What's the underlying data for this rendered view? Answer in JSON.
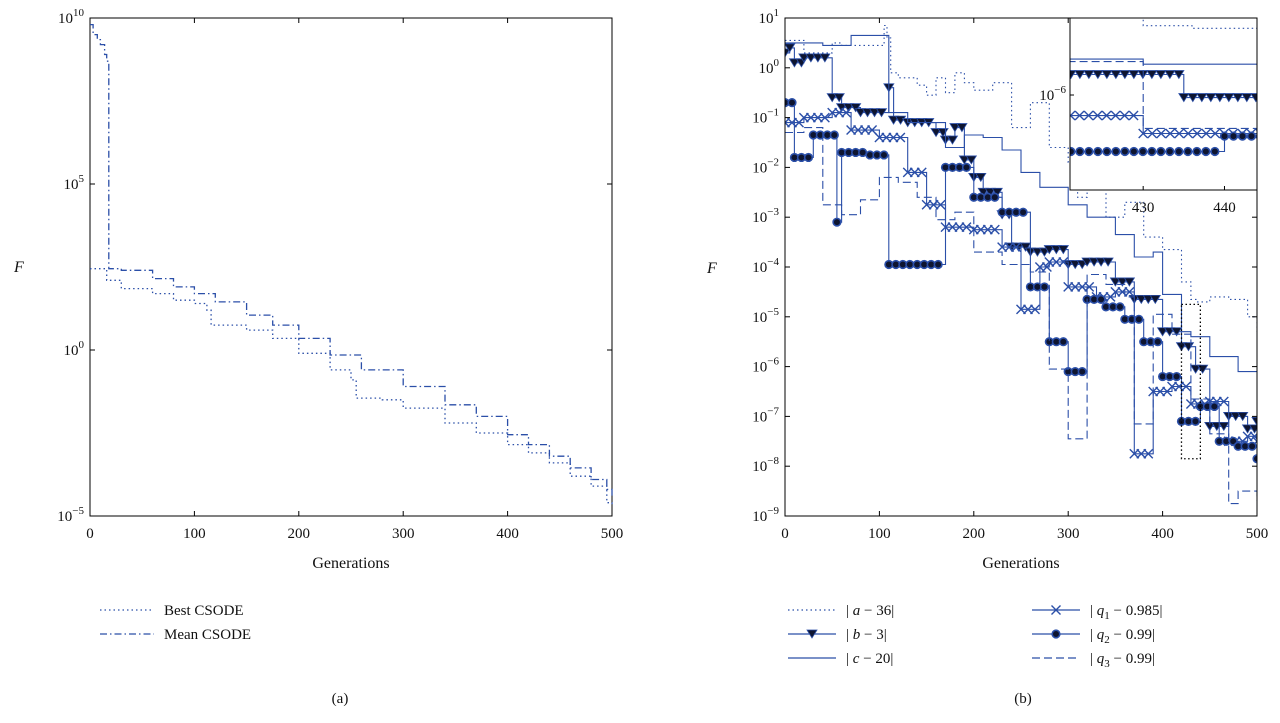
{
  "chart_data": [
    {
      "id": "a",
      "panel_label": "(a)",
      "type": "line",
      "xlabel": "Generations",
      "ylabel": "F",
      "xlim": [
        0,
        500
      ],
      "ylim_exp": [
        -5,
        10
      ],
      "log_y": true,
      "grid": false,
      "legend_position": "below",
      "x_ticks": [
        "0",
        "100",
        "200",
        "300",
        "400",
        "500"
      ],
      "y_tick_exponents": [
        "10",
        "5",
        "0",
        "−5"
      ],
      "colors": {
        "line": "#2b4fa8"
      },
      "series": [
        {
          "name": "Best CSODE",
          "style": "dotted",
          "x": [
            0,
            16,
            30,
            60,
            80,
            100,
            112,
            116,
            150,
            175,
            200,
            230,
            250,
            255,
            280,
            300,
            340,
            370,
            400,
            420,
            440,
            460,
            480,
            495,
            500
          ],
          "log10_y": [
            2.45,
            2.1,
            1.85,
            1.7,
            1.5,
            1.4,
            1.2,
            0.75,
            0.6,
            0.35,
            -0.1,
            -0.6,
            -0.9,
            -1.45,
            -1.5,
            -1.75,
            -2.2,
            -2.5,
            -2.85,
            -3.1,
            -3.4,
            -3.8,
            -4.1,
            -4.6,
            -4.7
          ]
        },
        {
          "name": "Mean CSODE",
          "style": "dashdot",
          "x": [
            0,
            3,
            7,
            10,
            14,
            16,
            18,
            30,
            60,
            80,
            100,
            120,
            150,
            175,
            200,
            230,
            260,
            300,
            340,
            370,
            400,
            420,
            440,
            460,
            480,
            495,
            500
          ],
          "log10_y": [
            9.8,
            9.5,
            9.35,
            9.2,
            8.9,
            8.7,
            2.45,
            2.4,
            2.15,
            1.9,
            1.7,
            1.45,
            1.05,
            0.75,
            0.35,
            -0.15,
            -0.6,
            -1.1,
            -1.65,
            -2.0,
            -2.55,
            -2.85,
            -3.2,
            -3.55,
            -3.9,
            -4.2,
            -4.4
          ]
        }
      ]
    },
    {
      "id": "b",
      "panel_label": "(b)",
      "type": "line",
      "xlabel": "Generations",
      "ylabel": "F",
      "xlim": [
        0,
        500
      ],
      "ylim_exp": [
        -9,
        1
      ],
      "log_y": true,
      "grid": false,
      "legend_position": "below",
      "x_ticks": [
        "0",
        "100",
        "200",
        "300",
        "400",
        "500"
      ],
      "y_tick_exponents": [
        "1",
        "0",
        "−1",
        "−2",
        "−3",
        "−4",
        "−5",
        "−6",
        "−7",
        "−8",
        "−9"
      ],
      "colors": {
        "line": "#2b4fa8",
        "marker_dark": "#0e1530",
        "box": "#000000"
      },
      "zoom_box": {
        "x": [
          420,
          440
        ],
        "log10_y": [
          -7.85,
          -4.75
        ]
      },
      "inset": {
        "xlim": [
          421,
          444
        ],
        "log10_ylim": [
          -7.85,
          -4.5
        ],
        "x_ticks": [
          "430",
          "440"
        ],
        "y_tick_exponents": [
          "−6"
        ]
      },
      "series": [
        {
          "name": "|a − 36|",
          "label_parts": [
            "|",
            "a",
            " − 36|"
          ],
          "style": "dotted",
          "marker": "none",
          "x": [
            0,
            20,
            50,
            60,
            105,
            108,
            112,
            120,
            140,
            150,
            160,
            170,
            180,
            190,
            200,
            220,
            240,
            260,
            280,
            300,
            310,
            320,
            340,
            360,
            380,
            400,
            420,
            430,
            436,
            450,
            470,
            490,
            500
          ],
          "log10_y": [
            0.55,
            0.3,
            0.5,
            0.45,
            0.85,
            0.6,
            -0.1,
            -0.2,
            -0.35,
            -0.55,
            -0.2,
            -0.5,
            -0.1,
            -0.3,
            -0.45,
            -0.3,
            -1.2,
            -0.7,
            -1.6,
            -1.9,
            -2.6,
            -2.4,
            -3.0,
            -2.7,
            -3.4,
            -3.65,
            -4.3,
            -4.65,
            -4.7,
            -4.6,
            -4.65,
            -5.0,
            -5.3
          ]
        },
        {
          "name": "|b − 3|",
          "label_parts": [
            "|",
            "b",
            " − 3|"
          ],
          "style": "solid",
          "marker": "triangle",
          "x": [
            0,
            5,
            10,
            20,
            50,
            60,
            80,
            110,
            115,
            130,
            160,
            170,
            180,
            190,
            200,
            210,
            230,
            240,
            260,
            280,
            300,
            320,
            350,
            370,
            400,
            420,
            435,
            450,
            470,
            490,
            500
          ],
          "log10_y": [
            0.3,
            0.4,
            0.1,
            0.2,
            -0.6,
            -0.8,
            -0.9,
            -0.4,
            -1.05,
            -1.1,
            -1.3,
            -1.45,
            -1.2,
            -1.85,
            -2.2,
            -2.5,
            -2.95,
            -3.6,
            -3.7,
            -3.65,
            -3.95,
            -3.9,
            -4.3,
            -4.65,
            -5.3,
            -5.6,
            -6.05,
            -7.2,
            -7.0,
            -7.25,
            -7.1
          ]
        },
        {
          "name": "|c − 20|",
          "label_parts": [
            "|",
            "c",
            " − 20|"
          ],
          "style": "solid",
          "marker": "none",
          "x": [
            0,
            40,
            70,
            110,
            130,
            150,
            170,
            190,
            210,
            230,
            250,
            270,
            300,
            320,
            350,
            370,
            390,
            400,
            420,
            430,
            450,
            470,
            480,
            500
          ],
          "log10_y": [
            0.5,
            0.45,
            0.65,
            -0.9,
            -1.1,
            -1.1,
            -1.6,
            -1.35,
            -1.4,
            -1.65,
            -2.1,
            -2.4,
            -2.75,
            -3.0,
            -3.35,
            -3.8,
            -3.7,
            -4.55,
            -5.3,
            -5.4,
            -5.8,
            -5.8,
            -6.1,
            -6.1
          ]
        },
        {
          "name": "|q₁ − 0.985|",
          "label_parts": [
            "|",
            "q",
            "1",
            " − 0.985|"
          ],
          "style": "solid",
          "marker": "x",
          "x": [
            0,
            20,
            50,
            70,
            100,
            130,
            150,
            170,
            200,
            230,
            250,
            270,
            280,
            300,
            330,
            350,
            370,
            390,
            410,
            430,
            450,
            470,
            490,
            500
          ],
          "log10_y": [
            -1.1,
            -1.0,
            -0.9,
            -1.25,
            -1.4,
            -2.1,
            -2.75,
            -3.2,
            -3.25,
            -3.6,
            -4.85,
            -4.0,
            -3.9,
            -4.4,
            -4.6,
            -4.5,
            -7.75,
            -6.5,
            -6.4,
            -6.75,
            -6.7,
            -7.5,
            -7.4,
            -7.5
          ]
        },
        {
          "name": "|q₂ − 0.99|",
          "label_parts": [
            "|",
            "q",
            "2",
            " − 0.99|"
          ],
          "style": "solid",
          "marker": "dot",
          "x": [
            0,
            10,
            30,
            55,
            60,
            90,
            110,
            140,
            170,
            200,
            230,
            260,
            280,
            300,
            320,
            340,
            360,
            380,
            400,
            420,
            440,
            460,
            480,
            500
          ],
          "log10_y": [
            -0.7,
            -1.8,
            -1.35,
            -3.1,
            -1.7,
            -1.75,
            -3.95,
            -3.95,
            -2.0,
            -2.6,
            -2.9,
            -4.4,
            -5.5,
            -6.1,
            -4.65,
            -4.8,
            -5.05,
            -5.5,
            -6.2,
            -7.1,
            -6.8,
            -7.5,
            -7.6,
            -7.85
          ]
        },
        {
          "name": "|q₃ − 0.99|",
          "label_parts": [
            "|",
            "q",
            "3",
            " − 0.99|"
          ],
          "style": "dashed",
          "marker": "none",
          "x": [
            0,
            20,
            40,
            60,
            80,
            100,
            120,
            140,
            160,
            180,
            200,
            230,
            260,
            280,
            300,
            320,
            340,
            360,
            370,
            390,
            410,
            430,
            450,
            470,
            480,
            500
          ],
          "log10_y": [
            -1.3,
            -1.2,
            -2.75,
            -2.95,
            -2.65,
            -2.2,
            -2.3,
            -2.6,
            -3.05,
            -2.9,
            -3.7,
            -3.95,
            -4.1,
            -6.05,
            -7.45,
            -4.15,
            -4.35,
            -4.6,
            -7.15,
            -4.95,
            -5.35,
            -6.65,
            -7.35,
            -8.75,
            -8.5,
            -8.7
          ]
        }
      ]
    }
  ]
}
